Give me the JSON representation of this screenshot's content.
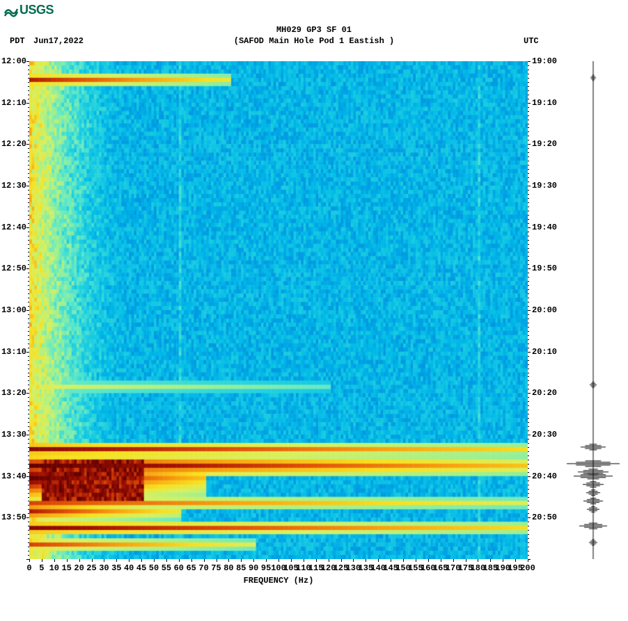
{
  "logo_text": "USGS",
  "logo_color": "#006b4f",
  "title_line1": "MH029 GP3 SF 01",
  "title_line2": "(SAFOD Main Hole Pod 1 Eastish )",
  "tz_left": "PDT",
  "date_left": "Jun17,2022",
  "tz_right": "UTC",
  "x_label": "FREQUENCY (Hz)",
  "spectrogram": {
    "type": "heatmap",
    "x_min": 0,
    "x_max": 200,
    "x_tick_step": 5,
    "x_ticks": [
      0,
      5,
      10,
      15,
      20,
      25,
      30,
      35,
      40,
      45,
      50,
      55,
      60,
      65,
      70,
      75,
      80,
      85,
      90,
      95,
      100,
      105,
      110,
      115,
      120,
      125,
      130,
      135,
      140,
      145,
      150,
      155,
      160,
      165,
      170,
      175,
      180,
      185,
      190,
      195,
      200
    ],
    "y_left_ticks": [
      "12:00",
      "12:10",
      "12:20",
      "12:30",
      "12:40",
      "12:50",
      "13:00",
      "13:10",
      "13:20",
      "13:30",
      "13:40",
      "13:50"
    ],
    "y_right_ticks": [
      "19:00",
      "19:10",
      "19:20",
      "19:30",
      "19:40",
      "19:50",
      "20:00",
      "20:10",
      "20:20",
      "20:30",
      "20:40",
      "20:50"
    ],
    "y_rows": 120,
    "palette": [
      "#0a2a7a",
      "#0050c8",
      "#0090e0",
      "#00b8e8",
      "#20d0e0",
      "#60e8c8",
      "#a0f090",
      "#d8f060",
      "#f8e020",
      "#f8a010",
      "#e05008",
      "#a01000",
      "#600000"
    ],
    "background_band_freq": 10,
    "low_freq_band_width": 40,
    "events": [
      {
        "time_row": 4,
        "intensity": 0.9,
        "freq_extent": 80,
        "thickness": 1
      },
      {
        "time_row": 78,
        "intensity": 0.6,
        "freq_extent": 120,
        "thickness": 1
      },
      {
        "time_row": 93,
        "intensity": 0.95,
        "freq_extent": 200,
        "thickness": 1
      },
      {
        "time_row": 97,
        "intensity": 1.0,
        "freq_extent": 200,
        "thickness": 2
      },
      {
        "time_row": 100,
        "intensity": 1.0,
        "freq_extent": 70,
        "thickness": 5
      },
      {
        "time_row": 106,
        "intensity": 0.85,
        "freq_extent": 200,
        "thickness": 1
      },
      {
        "time_row": 108,
        "intensity": 0.9,
        "freq_extent": 60,
        "thickness": 2
      },
      {
        "time_row": 112,
        "intensity": 0.95,
        "freq_extent": 200,
        "thickness": 1
      },
      {
        "time_row": 116,
        "intensity": 0.85,
        "freq_extent": 90,
        "thickness": 1
      }
    ],
    "vertical_lines_freq": [
      60,
      180
    ],
    "noise_seed": 42
  },
  "amplitude_trace": {
    "color": "#000000",
    "baseline_x": 40,
    "max_amp": 38,
    "spikes": [
      {
        "row": 4,
        "amp": 4
      },
      {
        "row": 78,
        "amp": 5
      },
      {
        "row": 93,
        "amp": 18
      },
      {
        "row": 97,
        "amp": 38
      },
      {
        "row": 99,
        "amp": 22
      },
      {
        "row": 100,
        "amp": 28
      },
      {
        "row": 102,
        "amp": 15
      },
      {
        "row": 104,
        "amp": 10
      },
      {
        "row": 106,
        "amp": 14
      },
      {
        "row": 108,
        "amp": 9
      },
      {
        "row": 112,
        "amp": 20
      },
      {
        "row": 116,
        "amp": 6
      }
    ]
  }
}
